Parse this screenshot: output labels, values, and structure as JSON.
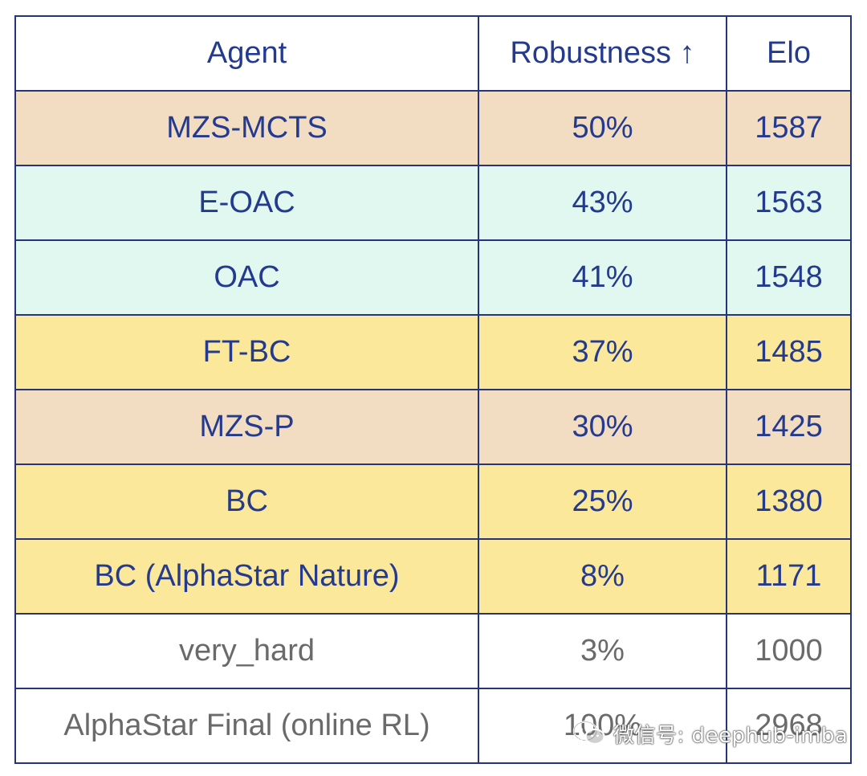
{
  "chart_data": {
    "type": "table",
    "columns": [
      "Agent",
      "Robustness ↑",
      "Elo"
    ],
    "rows": [
      {
        "agent": "MZS-MCTS",
        "robustness": "50%",
        "elo": "1587",
        "color": "#f3ddc2",
        "style": "peach"
      },
      {
        "agent": "E-OAC",
        "robustness": "43%",
        "elo": "1563",
        "color": "#e0f8ef",
        "style": "mint"
      },
      {
        "agent": "OAC",
        "robustness": "41%",
        "elo": "1548",
        "color": "#e0f8ef",
        "style": "mint"
      },
      {
        "agent": "FT-BC",
        "robustness": "37%",
        "elo": "1485",
        "color": "#fbe89a",
        "style": "yellow"
      },
      {
        "agent": "MZS-P",
        "robustness": "30%",
        "elo": "1425",
        "color": "#f3ddc2",
        "style": "peach"
      },
      {
        "agent": "BC",
        "robustness": "25%",
        "elo": "1380",
        "color": "#fbe89a",
        "style": "yellow"
      },
      {
        "agent": "BC (AlphaStar Nature)",
        "robustness": "8%",
        "elo": "1171",
        "color": "#fbe89a",
        "style": "yellow"
      },
      {
        "agent": "very_hard",
        "robustness": "3%",
        "elo": "1000",
        "color": "#ffffff",
        "style": "plain"
      },
      {
        "agent": "AlphaStar Final (online RL)",
        "robustness": "100%",
        "elo": "2968",
        "color": "#ffffff",
        "style": "plain"
      }
    ]
  },
  "colors": {
    "border": "#26357a",
    "text_primary": "#233a8f",
    "text_muted": "#6a6a6a"
  },
  "watermark": {
    "icon": "wechat-icon",
    "text": "微信号: deephub-imba"
  }
}
